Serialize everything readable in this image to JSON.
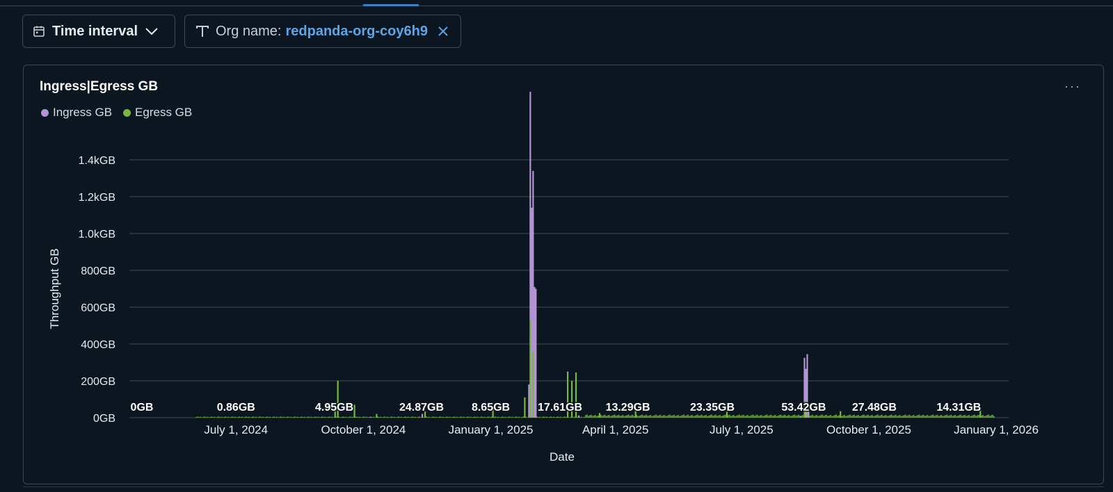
{
  "filters": {
    "time_interval_label": "Time interval",
    "org_label": "Org name:",
    "org_value": "redpanda-org-coy6h9"
  },
  "panel": {
    "title": "Ingress|Egress GB",
    "menu": "···"
  },
  "colors": {
    "ingress": "#b395d6",
    "egress": "#78b83f",
    "accent": "#5aa6ea",
    "grid": "#3c4955"
  },
  "chart_data": {
    "type": "bar",
    "stacked": true,
    "title": "Ingress|Egress GB",
    "xlabel": "Date",
    "ylabel": "Throughput GB",
    "ylim": [
      0,
      1400
    ],
    "y_ticks": [
      "0GB",
      "200GB",
      "400GB",
      "600GB",
      "800GB",
      "1.0kGB",
      "1.2kGB",
      "1.4kGB"
    ],
    "x_range": [
      "2024-04-15",
      "2026-01-10"
    ],
    "x_ticks": [
      {
        "date": "2024-07-01",
        "label": "July 1, 2024"
      },
      {
        "date": "2024-10-01",
        "label": "October 1, 2024"
      },
      {
        "date": "2025-01-01",
        "label": "January 1, 2025"
      },
      {
        "date": "2025-04-01",
        "label": "April 1, 2025"
      },
      {
        "date": "2025-07-01",
        "label": "July 1, 2025"
      },
      {
        "date": "2025-10-01",
        "label": "October 1, 2025"
      },
      {
        "date": "2026-01-01",
        "label": "January 1, 2026"
      }
    ],
    "legend": [
      "Ingress GB",
      "Egress GB"
    ],
    "legend_position": "top-left",
    "grid": true,
    "series": [
      {
        "name": "Ingress GB",
        "points": [
          [
            "2024-09-10",
            4
          ],
          [
            "2024-10-05",
            3
          ],
          [
            "2024-11-12",
            20
          ],
          [
            "2025-01-28",
            180
          ],
          [
            "2025-01-29",
            1240
          ],
          [
            "2025-01-30",
            1140
          ],
          [
            "2025-01-31",
            980
          ],
          [
            "2025-02-01",
            710
          ],
          [
            "2025-02-02",
            700
          ],
          [
            "2025-02-25",
            10
          ],
          [
            "2025-03-05",
            12
          ],
          [
            "2025-08-12",
            8
          ],
          [
            "2025-08-15",
            235
          ],
          [
            "2025-08-16",
            265
          ],
          [
            "2025-08-17",
            260
          ],
          [
            "2025-08-18",
            60
          ]
        ]
      },
      {
        "name": "Egress GB",
        "points": [
          [
            "2024-09-10",
            35
          ],
          [
            "2024-09-12",
            200
          ],
          [
            "2024-09-24",
            70
          ],
          [
            "2024-10-10",
            20
          ],
          [
            "2024-11-14",
            35
          ],
          [
            "2025-01-02",
            45
          ],
          [
            "2025-01-25",
            110
          ],
          [
            "2025-01-29",
            530
          ],
          [
            "2025-01-31",
            360
          ],
          [
            "2025-02-25",
            240
          ],
          [
            "2025-02-28",
            200
          ],
          [
            "2025-03-03",
            245
          ],
          [
            "2025-03-20",
            25
          ],
          [
            "2025-04-15",
            40
          ],
          [
            "2025-06-20",
            45
          ],
          [
            "2025-08-15",
            90
          ],
          [
            "2025-08-17",
            85
          ],
          [
            "2025-09-10",
            35
          ],
          [
            "2025-12-20",
            50
          ]
        ]
      }
    ],
    "annotations": [
      {
        "date": "2024-04-15",
        "label": "0GB"
      },
      {
        "date": "2024-07-01",
        "label": "0.86GB"
      },
      {
        "date": "2024-09-10",
        "label": "4.95GB"
      },
      {
        "date": "2024-11-12",
        "label": "24.87GB"
      },
      {
        "date": "2025-01-01",
        "label": "8.65GB"
      },
      {
        "date": "2025-02-20",
        "label": "17.61GB"
      },
      {
        "date": "2025-04-10",
        "label": "13.29GB"
      },
      {
        "date": "2025-06-10",
        "label": "23.35GB"
      },
      {
        "date": "2025-08-15",
        "label": "53.42GB"
      },
      {
        "date": "2025-10-05",
        "label": "27.48GB"
      },
      {
        "date": "2025-12-05",
        "label": "14.31GB"
      }
    ]
  }
}
